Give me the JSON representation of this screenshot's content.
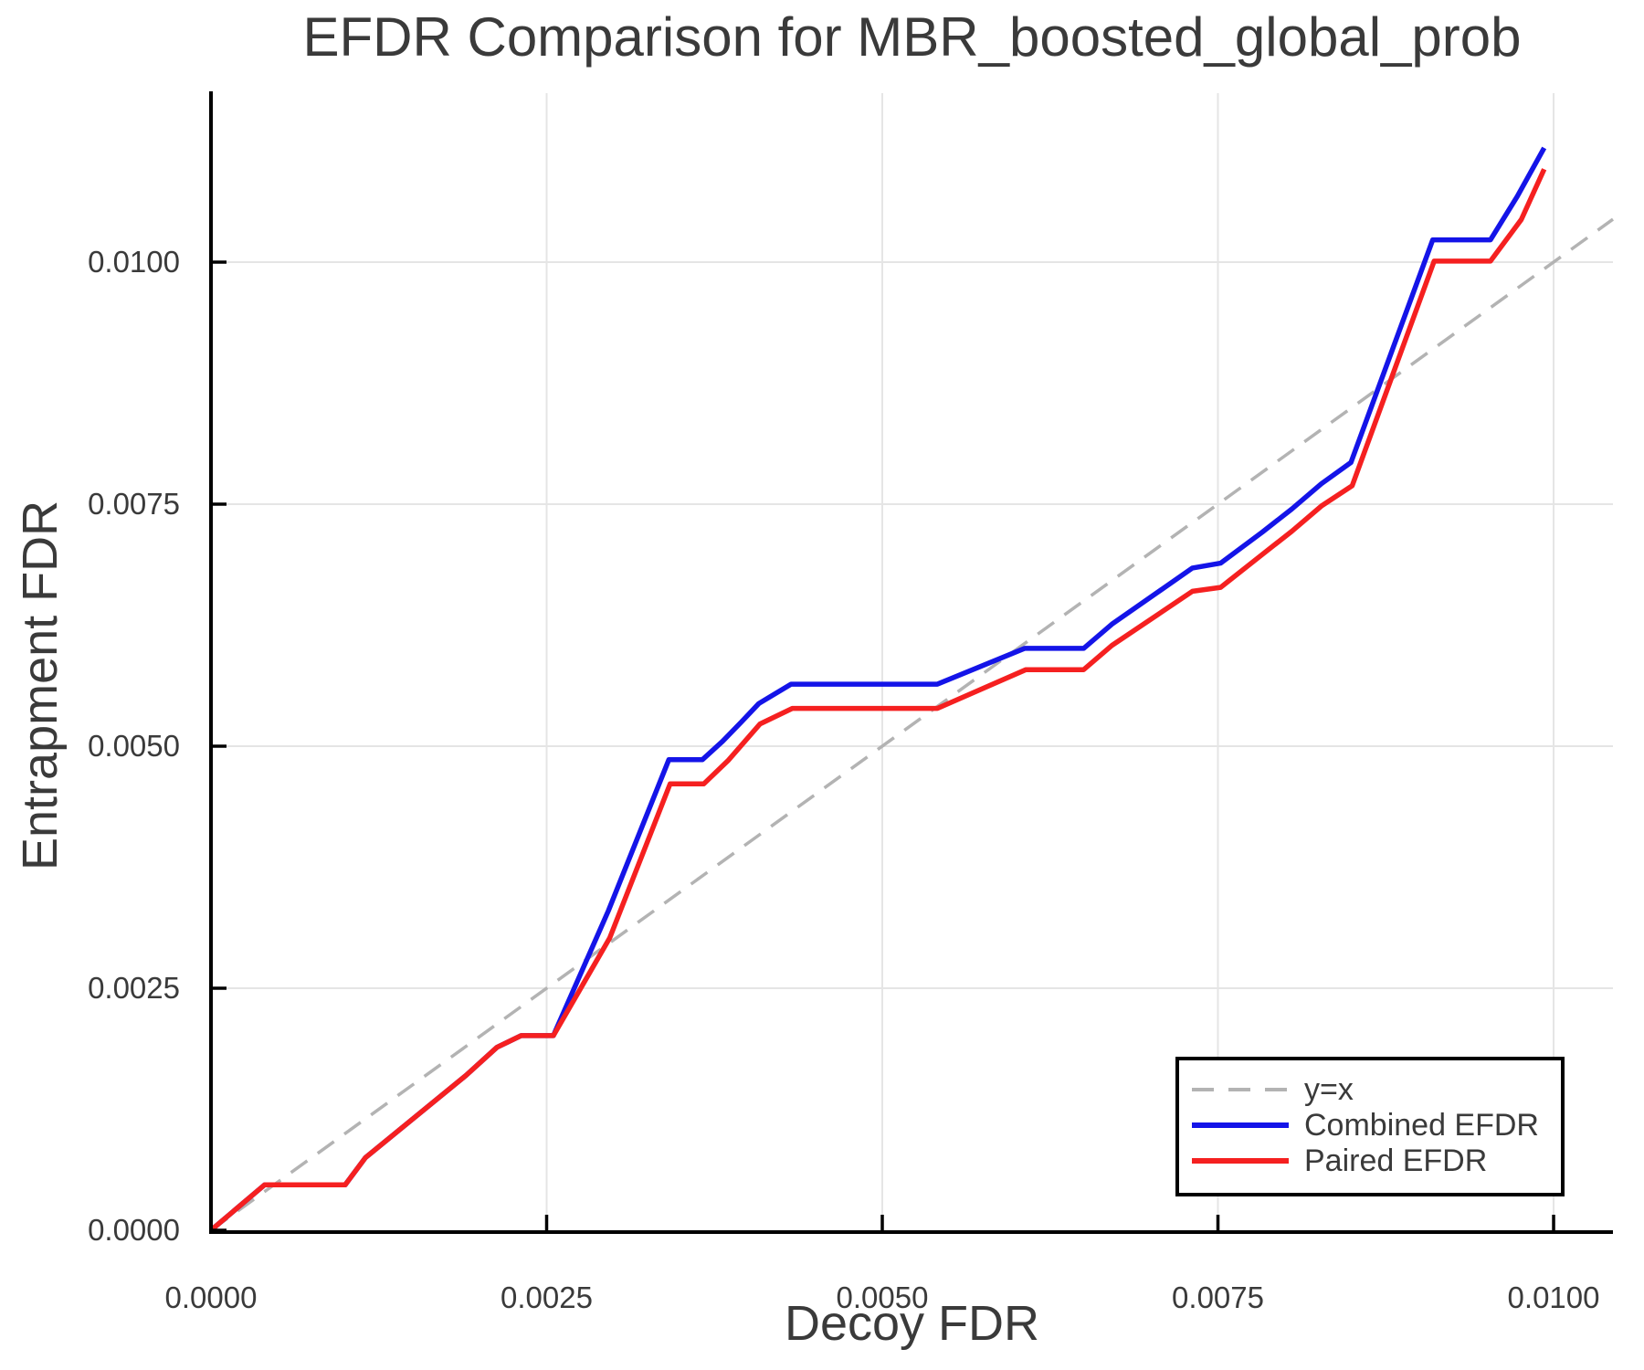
{
  "title": "EFDR Comparison for MBR_boosted_global_prob",
  "chart_data": {
    "type": "line",
    "title": "EFDR Comparison for MBR_boosted_global_prob",
    "xlabel": "Decoy FDR",
    "ylabel": "Entrapment FDR",
    "xlim": [
      0,
      0.010442
    ],
    "ylim": [
      0,
      0.011745
    ],
    "grid": true,
    "grid_color": "#e5e5e5",
    "axis_color": "#000000",
    "text_color": "#3a3a3a",
    "legend_position": "lower right",
    "x_ticks": [
      {
        "v": 0.0,
        "label": "0.0000"
      },
      {
        "v": 0.0025,
        "label": "0.0025"
      },
      {
        "v": 0.005,
        "label": "0.0050"
      },
      {
        "v": 0.0075,
        "label": "0.0075"
      },
      {
        "v": 0.01,
        "label": "0.0100"
      }
    ],
    "y_ticks": [
      {
        "v": 0.0,
        "label": "0.0000"
      },
      {
        "v": 0.0025,
        "label": "0.0025"
      },
      {
        "v": 0.005,
        "label": "0.0050"
      },
      {
        "v": 0.0075,
        "label": "0.0075"
      },
      {
        "v": 0.01,
        "label": "0.0100"
      }
    ],
    "series": [
      {
        "id": "identity-line",
        "name": "y=x",
        "color": "#b3b3b3",
        "style": "dashed",
        "width": 3.5,
        "points": [
          [
            0,
            0
          ],
          [
            0.010442,
            0.010442
          ]
        ]
      },
      {
        "id": "combined-efdr-line",
        "name": "Combined EFDR",
        "color": "#1414e8",
        "style": "solid",
        "width": 5.5,
        "points": [
          [
            0.0,
            0.0
          ],
          [
            0.0004,
            0.00047
          ],
          [
            0.001,
            0.00047
          ],
          [
            0.00115,
            0.00075
          ],
          [
            0.0019,
            0.0016
          ],
          [
            0.00213,
            0.00189
          ],
          [
            0.00231,
            0.00201
          ],
          [
            0.00255,
            0.00201
          ],
          [
            0.00296,
            0.0033
          ],
          [
            0.00341,
            0.00486
          ],
          [
            0.00366,
            0.00486
          ],
          [
            0.00381,
            0.00505
          ],
          [
            0.00395,
            0.00525
          ],
          [
            0.00408,
            0.00544
          ],
          [
            0.00432,
            0.00564
          ],
          [
            0.00541,
            0.00564
          ],
          [
            0.00606,
            0.00601
          ],
          [
            0.0065,
            0.00601
          ],
          [
            0.00671,
            0.00626
          ],
          [
            0.00731,
            0.00684
          ],
          [
            0.00752,
            0.00689
          ],
          [
            0.00783,
            0.00721
          ],
          [
            0.00805,
            0.00745
          ],
          [
            0.00827,
            0.00771
          ],
          [
            0.00849,
            0.00793
          ],
          [
            0.0091,
            0.01023
          ],
          [
            0.00953,
            0.01023
          ],
          [
            0.00973,
            0.01068
          ],
          [
            0.00993,
            0.01118
          ]
        ]
      },
      {
        "id": "paired-efdr-line",
        "name": "Paired EFDR",
        "color": "#f52020",
        "style": "solid",
        "width": 5.5,
        "points": [
          [
            0.0,
            0.0
          ],
          [
            0.0004,
            0.00047
          ],
          [
            0.001,
            0.00047
          ],
          [
            0.00115,
            0.00075
          ],
          [
            0.0019,
            0.0016
          ],
          [
            0.00213,
            0.00189
          ],
          [
            0.00231,
            0.00201
          ],
          [
            0.00255,
            0.00201
          ],
          [
            0.00297,
            0.00302
          ],
          [
            0.00342,
            0.00461
          ],
          [
            0.00367,
            0.00461
          ],
          [
            0.00385,
            0.00485
          ],
          [
            0.00409,
            0.00523
          ],
          [
            0.00433,
            0.00539
          ],
          [
            0.00541,
            0.00539
          ],
          [
            0.00607,
            0.00579
          ],
          [
            0.0065,
            0.00579
          ],
          [
            0.00671,
            0.00604
          ],
          [
            0.00731,
            0.0066
          ],
          [
            0.00752,
            0.00664
          ],
          [
            0.00783,
            0.00698
          ],
          [
            0.00805,
            0.00722
          ],
          [
            0.00827,
            0.00748
          ],
          [
            0.0085,
            0.00769
          ],
          [
            0.00911,
            0.01001
          ],
          [
            0.00953,
            0.01001
          ],
          [
            0.00976,
            0.01044
          ],
          [
            0.00993,
            0.01096
          ]
        ]
      }
    ]
  }
}
